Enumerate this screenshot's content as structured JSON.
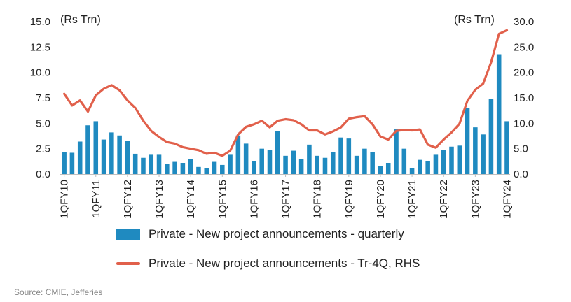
{
  "chart_data": {
    "type": "bar+line",
    "left_unit": "(Rs Trn)",
    "right_unit": "(Rs Trn)",
    "left_axis": {
      "ticks": [
        "0.0",
        "2.5",
        "5.0",
        "7.5",
        "10.0",
        "12.5",
        "15.0"
      ],
      "ylim": [
        0,
        15
      ]
    },
    "right_axis": {
      "ticks": [
        "0.0",
        "5.0",
        "10.0",
        "15.0",
        "20.0",
        "25.0",
        "30.0"
      ],
      "ylim": [
        0,
        30
      ]
    },
    "x_labels": [
      "1QFY10",
      "1QFY11",
      "1QFY12",
      "1QFY13",
      "1QFY14",
      "1QFY15",
      "1QFY16",
      "1QFY17",
      "1QFY18",
      "1QFY19",
      "1QFY20",
      "1QFY21",
      "1QFY22",
      "1QFY23",
      "1QFY24"
    ],
    "series": [
      {
        "name": "Private - New project announcements - quarterly",
        "type": "bar",
        "axis": "left",
        "color": "#1f8ac0",
        "values": [
          2.2,
          2.1,
          3.2,
          4.8,
          5.2,
          3.4,
          4.1,
          3.8,
          3.3,
          2.0,
          1.6,
          1.9,
          1.9,
          1.0,
          1.2,
          1.1,
          1.5,
          0.7,
          0.6,
          1.2,
          0.9,
          1.9,
          3.8,
          3.0,
          1.3,
          2.5,
          2.4,
          4.2,
          1.8,
          2.3,
          1.5,
          2.9,
          1.8,
          1.6,
          2.2,
          3.6,
          3.5,
          1.8,
          2.5,
          2.2,
          0.8,
          1.1,
          4.4,
          2.5,
          0.6,
          1.4,
          1.3,
          1.9,
          2.4,
          2.7,
          2.8,
          6.5,
          4.6,
          3.9,
          7.4,
          11.8,
          5.2
        ]
      },
      {
        "name": "Private - New project announcements - Tr-4Q, RHS",
        "type": "line",
        "axis": "right",
        "color": "#e1604b",
        "values": [
          15.8,
          13.5,
          14.5,
          12.3,
          15.5,
          16.8,
          17.5,
          16.5,
          14.5,
          13.0,
          10.5,
          8.5,
          7.3,
          6.3,
          6.0,
          5.3,
          5.0,
          4.7,
          4.0,
          4.2,
          3.6,
          4.6,
          7.8,
          9.3,
          9.8,
          10.5,
          9.2,
          10.5,
          10.8,
          10.6,
          9.8,
          8.6,
          8.6,
          7.8,
          8.4,
          9.2,
          10.9,
          11.2,
          11.4,
          9.8,
          7.4,
          6.8,
          8.5,
          8.7,
          8.6,
          8.8,
          5.8,
          5.2,
          6.8,
          8.2,
          9.9,
          14.4,
          16.6,
          17.8,
          22.0,
          27.6,
          28.3
        ]
      }
    ]
  },
  "legend": {
    "bar_label": "Private - New project announcements - quarterly",
    "line_label": "Private - New project announcements - Tr-4Q, RHS"
  },
  "source": "Source: CMIE, Jefferies"
}
